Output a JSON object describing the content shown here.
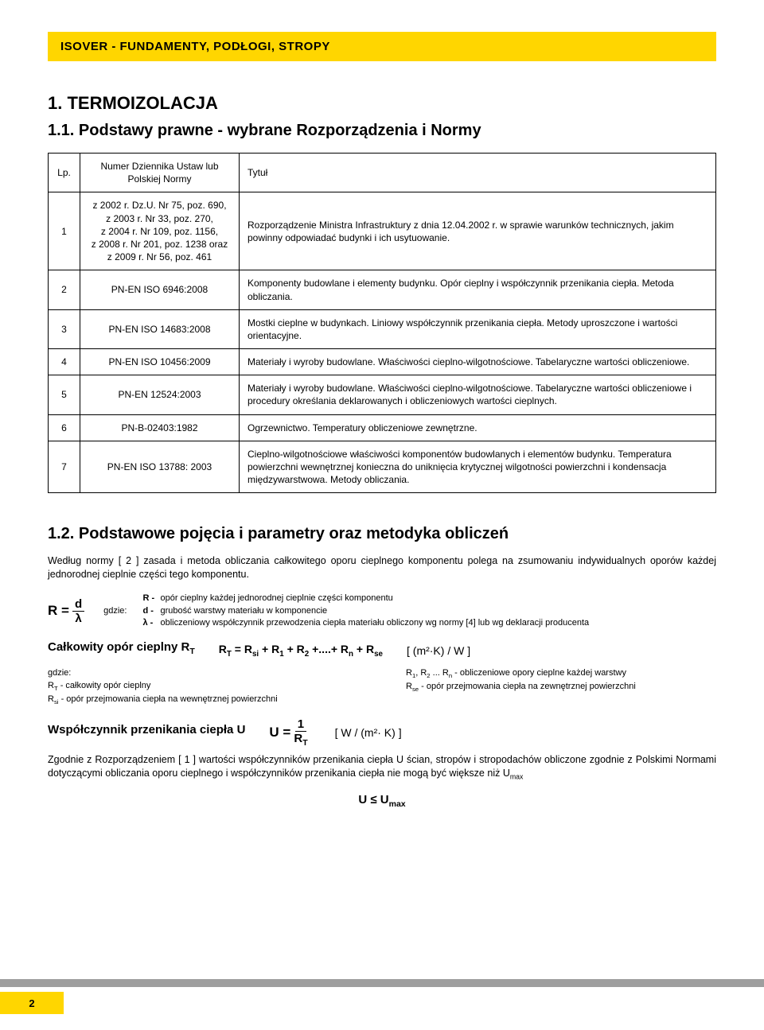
{
  "colors": {
    "brand_yellow": "#ffd600",
    "divider_gray": "#9e9e9e",
    "text": "#000000",
    "bg": "#ffffff"
  },
  "header": {
    "title": "ISOVER - FUNDAMENTY, PODŁOGI, STROPY"
  },
  "section1": {
    "h1": "1.   TERMOIZOLACJA",
    "h1_1": "1.1. Podstawy prawne - wybrane Rozporządzenia i Normy"
  },
  "table": {
    "headers": {
      "lp": "Lp.",
      "ref": "Numer Dziennika Ustaw lub Polskiej Normy",
      "title": "Tytuł"
    },
    "rows": [
      {
        "lp": "1",
        "ref": "z 2002 r. Dz.U. Nr 75, poz. 690,\nz 2003 r. Nr 33, poz. 270,\nz 2004 r. Nr 109, poz. 1156,\nz 2008 r. Nr 201, poz. 1238 oraz\nz 2009 r. Nr 56, poz. 461",
        "title": "Rozporządzenie Ministra Infrastruktury z dnia 12.04.2002 r. w sprawie warunków technicznych, jakim powinny odpowiadać budynki i ich usytuowanie."
      },
      {
        "lp": "2",
        "ref": "PN-EN ISO 6946:2008",
        "title": "Komponenty budowlane i elementy budynku. Opór cieplny i współczynnik przenikania ciepła. Metoda obliczania."
      },
      {
        "lp": "3",
        "ref": "PN-EN ISO 14683:2008",
        "title": "Mostki cieplne w budynkach. Liniowy współczynnik przenikania ciepła. Metody uproszczone i wartości orientacyjne."
      },
      {
        "lp": "4",
        "ref": "PN-EN ISO 10456:2009",
        "title": "Materiały i wyroby budowlane. Właściwości cieplno-wilgotnościowe. Tabelaryczne wartości obliczeniowe."
      },
      {
        "lp": "5",
        "ref": "PN-EN 12524:2003",
        "title": "Materiały i wyroby budowlane. Właściwości cieplno-wilgotnościowe. Tabelaryczne wartości obliczeniowe i procedury określania deklarowanych i obliczeniowych wartości cieplnych."
      },
      {
        "lp": "6",
        "ref": "PN-B-02403:1982",
        "title": "Ogrzewnictwo. Temperatury obliczeniowe zewnętrzne."
      },
      {
        "lp": "7",
        "ref": "PN-EN ISO 13788: 2003",
        "title": "Cieplno-wilgotnościowe właściwości komponentów budowlanych i elementów budynku. Temperatura powierzchni wewnętrznej konieczna do uniknięcia krytycznej wilgotności powierzchni i kondensacja międzywarstwowa. Metody obliczania."
      }
    ]
  },
  "section1_2": {
    "title": "1.2. Podstawowe pojęcia i parametry oraz metodyka obliczeń",
    "intro": "Według normy [ 2 ] zasada i metoda obliczania całkowitego oporu cieplnego komponentu polega na zsumowaniu indywidualnych oporów każdej jednorodnej cieplnie części tego komponentu.",
    "formula1": {
      "lhs": "R =",
      "num": "d",
      "den": "λ",
      "gdzie": "gdzie:",
      "legend": [
        {
          "sym": "R -",
          "txt": "opór cieplny każdej jednorodnej cieplnie części komponentu"
        },
        {
          "sym": "d -",
          "txt": "grubość warstwy materiału w komponencie"
        },
        {
          "sym": "λ -",
          "txt": "obliczeniowy współczynnik przewodzenia ciepła materiału obliczony wg normy [4] lub wg deklaracji producenta"
        }
      ]
    },
    "rt_heading": "Całkowity opór cieplny  R",
    "rt_sub": "T",
    "rt_eq": "R_T = R_si + R_1 + R_2 +....+ R_n + R_se",
    "rt_unit": "[ (m²·K) / W ]",
    "rt_legend_left": {
      "gdzie": "gdzie:",
      "l1": "R_T  - całkowity opór cieplny",
      "l2": "R_si  - opór przejmowania ciepła na wewnętrznej powierzchni"
    },
    "rt_legend_right": {
      "l1": "R_1, R_2 ... R_n  - obliczeniowe opory cieplne każdej warstwy",
      "l2": "R_se               - opór przejmowania ciepła na zewnętrznej powierzchni"
    },
    "u_heading": "Współczynnik przenikania ciepła  U",
    "u_eq_lhs": "U   =",
    "u_num": "1",
    "u_den": "R_T",
    "u_unit": "[ W / (m²· K) ]",
    "u_para": "Zgodnie z Rozporządzeniem [ 1 ] wartości współczynników przenikania  ciepła U ścian, stropów i stropodachów obliczone zgodnie z Polskimi Normami dotyczącymi obliczania oporu cieplnego i współczynników przenikania ciepła nie mogą być większe niż  U",
    "u_para_sub": "max",
    "u_final": "U ≤ U",
    "u_final_sub": "max"
  },
  "page_number": "2"
}
